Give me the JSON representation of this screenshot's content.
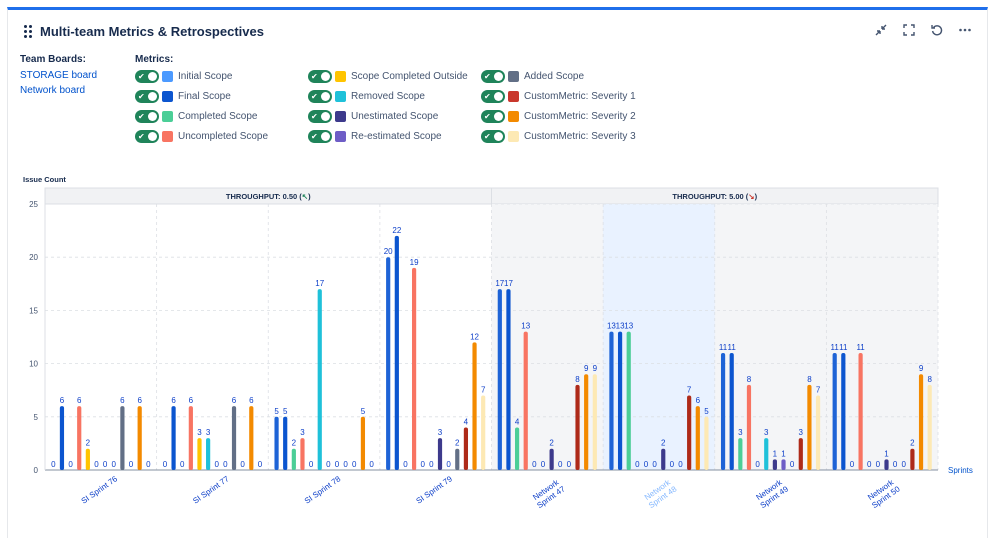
{
  "header": {
    "title": "Multi-team Metrics & Retrospectives",
    "icons": [
      "collapse-icon",
      "fullscreen-icon",
      "refresh-icon",
      "more-icon"
    ]
  },
  "team_boards": {
    "label": "Team Boards:",
    "items": [
      "STORAGE board",
      "Network board"
    ]
  },
  "metrics": {
    "label": "Metrics:",
    "items": [
      {
        "label": "Initial Scope",
        "color": "#4c9aff"
      },
      {
        "label": "Scope Completed Outside",
        "color": "#ffc400"
      },
      {
        "label": "Added Scope",
        "color": "#626f86"
      },
      {
        "label": "Final Scope",
        "color": "#0c55cf"
      },
      {
        "label": "Removed Scope",
        "color": "#1fc1d9"
      },
      {
        "label": "CustomMetric: Severity 1",
        "color": "#c9372c"
      },
      {
        "label": "Completed Scope",
        "color": "#4bce97"
      },
      {
        "label": "Unestimated Scope",
        "color": "#3d3a8c"
      },
      {
        "label": "CustomMetric: Severity 2",
        "color": "#f38a00"
      },
      {
        "label": "Uncompleted Scope",
        "color": "#f87462"
      },
      {
        "label": "Re-estimated Scope",
        "color": "#6e5dc6"
      },
      {
        "label": "CustomMetric: Severity 3",
        "color": "#fde9b4"
      }
    ]
  },
  "chart_data": {
    "type": "bar",
    "ylabel": "Issue Count",
    "xlabel": "Sprints",
    "ylim": [
      0,
      25
    ],
    "yticks": [
      0,
      5,
      10,
      15,
      20,
      25
    ],
    "categories": [
      "SI Sprint 76",
      "SI Sprint 77",
      "SI Sprint 78",
      "SI Sprint 79",
      "Network Sprint 47",
      "Network Sprint 48",
      "Network Sprint 49",
      "Network Sprint 50"
    ],
    "highlighted_category": "Network Sprint 48",
    "groups": [
      {
        "header": "THROUGHPUT: 0.50",
        "trend": "up",
        "trend_glyph": "↖",
        "categories": [
          0,
          3
        ]
      },
      {
        "header": "THROUGHPUT: 5.00",
        "trend": "down",
        "trend_glyph": "↘",
        "categories": [
          4,
          7
        ]
      }
    ],
    "series": [
      {
        "name": "Initial Scope",
        "color": "#1e63d6",
        "values": [
          0,
          0,
          5,
          20,
          17,
          13,
          11,
          11
        ]
      },
      {
        "name": "Final Scope",
        "color": "#0c55cf",
        "values": [
          6,
          6,
          5,
          22,
          17,
          13,
          11,
          11
        ]
      },
      {
        "name": "Completed Scope",
        "color": "#4bce97",
        "values": [
          0,
          0,
          2,
          0,
          4,
          13,
          3,
          0
        ]
      },
      {
        "name": "Uncompleted Scope",
        "color": "#f87462",
        "values": [
          6,
          6,
          3,
          19,
          13,
          0,
          8,
          11
        ]
      },
      {
        "name": "Scope Completed Outside",
        "color": "#ffc400",
        "values": [
          2,
          3,
          0,
          0,
          0,
          0,
          0,
          0
        ]
      },
      {
        "name": "Removed Scope",
        "color": "#1fc1d9",
        "values": [
          0,
          3,
          17,
          0,
          0,
          0,
          3,
          0
        ]
      },
      {
        "name": "Unestimated Scope",
        "color": "#3d3a8c",
        "values": [
          0,
          0,
          0,
          3,
          2,
          2,
          1,
          1
        ]
      },
      {
        "name": "Re-estimated Scope",
        "color": "#6e5dc6",
        "values": [
          0,
          0,
          0,
          0,
          0,
          0,
          1,
          0
        ]
      },
      {
        "name": "Added Scope",
        "color": "#626f86",
        "values": [
          6,
          6,
          0,
          2,
          0,
          0,
          0,
          0
        ]
      },
      {
        "name": "CustomMetric: Severity 1",
        "color": "#ae2a19",
        "values": [
          0,
          0,
          0,
          4,
          8,
          7,
          3,
          2
        ]
      },
      {
        "name": "CustomMetric: Severity 2",
        "color": "#f38a00",
        "values": [
          6,
          6,
          5,
          12,
          9,
          6,
          8,
          9
        ]
      },
      {
        "name": "CustomMetric: Severity 3",
        "color": "#fde9b4",
        "values": [
          0,
          0,
          0,
          7,
          9,
          5,
          7,
          8
        ]
      }
    ]
  }
}
